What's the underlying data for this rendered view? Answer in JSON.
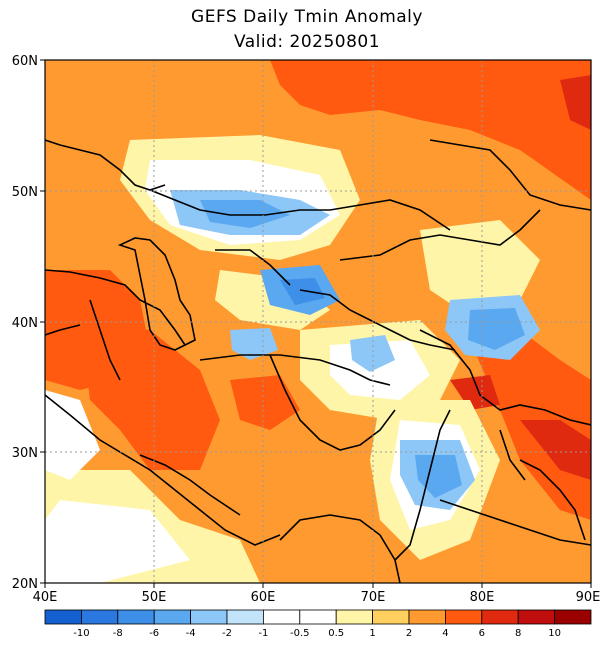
{
  "title": "GEFS Daily Tmin Anomaly",
  "subtitle": "Valid: 20250801",
  "map": {
    "extent": {
      "lon_min": 40,
      "lon_max": 90,
      "lat_min": 20,
      "lat_max": 60
    },
    "lat_labels": [
      "60N",
      "50N",
      "40N",
      "30N",
      "20N"
    ],
    "lon_labels": [
      "40E",
      "50E",
      "60E",
      "70E",
      "80E",
      "90E"
    ],
    "gridlines": "dotted"
  },
  "colorbar": {
    "colors": [
      "#1560d0",
      "#2a78e0",
      "#3d8fe8",
      "#5aa8f0",
      "#8cc7f7",
      "#c2e4fb",
      "#ffffff",
      "#ffffff",
      "#fff5a8",
      "#ffd060",
      "#ff9a30",
      "#ff5a10",
      "#e02a10",
      "#c00e0e",
      "#9a0000"
    ],
    "labels": [
      "-10",
      "-8",
      "-6",
      "-4",
      "-2",
      "-1",
      "-0.5",
      "0.5",
      "1",
      "2",
      "4",
      "6",
      "8",
      "10"
    ]
  }
}
